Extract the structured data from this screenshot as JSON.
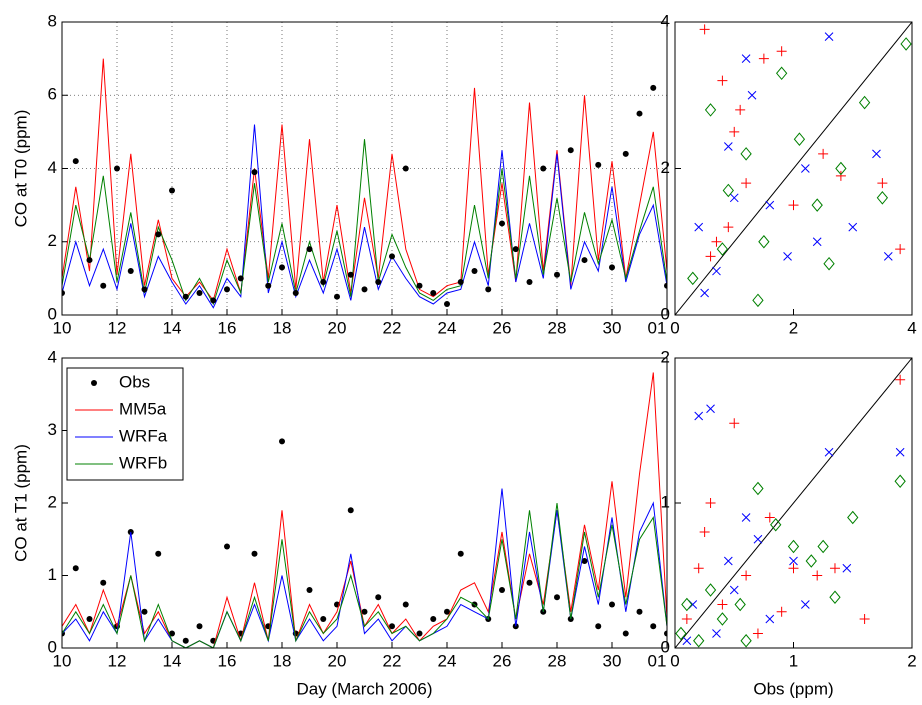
{
  "chart_data": [
    {
      "type": "line",
      "ylabel": "CO at T0 (ppm)",
      "grid": true,
      "x": [
        10,
        10.5,
        11,
        11.5,
        12,
        12.5,
        13,
        13.5,
        14,
        14.5,
        15,
        15.5,
        16,
        16.5,
        17,
        17.5,
        18,
        18.5,
        19,
        19.5,
        20,
        20.5,
        21,
        21.5,
        22,
        22.5,
        23,
        23.5,
        24,
        24.5,
        25,
        25.5,
        26,
        26.5,
        27,
        27.5,
        28,
        28.5,
        29,
        29.5,
        30,
        30.5,
        31,
        31.5,
        32
      ],
      "xlim": [
        10,
        32
      ],
      "xticks": [
        10,
        12,
        14,
        16,
        18,
        20,
        22,
        24,
        26,
        28,
        30,
        {
          "value": 32,
          "label": "01"
        }
      ],
      "ylim": [
        0,
        8
      ],
      "yticks": [
        0,
        2,
        4,
        6,
        8
      ],
      "series": [
        {
          "color": "#ff0000",
          "values": [
            1.0,
            3.5,
            1.2,
            7.0,
            1.1,
            4.4,
            0.8,
            2.6,
            1.0,
            0.5,
            0.9,
            0.4,
            1.8,
            0.6,
            4.0,
            1.0,
            5.2,
            0.7,
            4.8,
            0.9,
            3.0,
            0.6,
            3.2,
            1.0,
            4.4,
            1.8,
            0.7,
            0.5,
            0.8,
            0.9,
            6.2,
            1.1,
            3.6,
            0.9,
            5.8,
            1.2,
            4.5,
            0.8,
            6.0,
            1.5,
            4.2,
            1.0,
            3.0,
            5.0,
            1.2
          ]
        },
        {
          "color": "#0000ff",
          "values": [
            0.6,
            2.0,
            0.8,
            1.8,
            0.7,
            2.5,
            0.5,
            1.6,
            0.9,
            0.3,
            0.8,
            0.2,
            1.0,
            0.5,
            5.2,
            0.6,
            2.0,
            0.5,
            1.5,
            0.6,
            1.8,
            0.4,
            2.4,
            0.7,
            1.6,
            1.0,
            0.5,
            0.3,
            0.6,
            0.7,
            2.0,
            0.8,
            4.5,
            0.9,
            2.5,
            1.0,
            4.4,
            0.7,
            2.0,
            1.2,
            3.5,
            0.9,
            2.2,
            3.0,
            0.8
          ]
        },
        {
          "color": "#008000",
          "values": [
            0.8,
            3.0,
            1.5,
            3.8,
            0.9,
            2.8,
            0.6,
            2.4,
            1.5,
            0.4,
            1.0,
            0.3,
            1.5,
            0.6,
            3.6,
            0.9,
            2.5,
            0.6,
            2.0,
            0.8,
            2.3,
            0.5,
            4.8,
            0.9,
            2.2,
            1.3,
            0.6,
            0.4,
            0.7,
            0.8,
            3.0,
            1.0,
            4.0,
            1.0,
            3.8,
            1.1,
            3.2,
            0.9,
            2.8,
            1.4,
            2.6,
            1.0,
            2.3,
            3.5,
            0.9
          ]
        },
        {
          "color": "#000000",
          "marker": "dot",
          "values": [
            0.6,
            4.2,
            1.5,
            0.8,
            4.0,
            1.2,
            0.7,
            2.2,
            3.4,
            0.5,
            0.6,
            0.4,
            0.7,
            1.0,
            3.9,
            0.8,
            1.3,
            0.6,
            1.8,
            0.9,
            0.5,
            1.1,
            0.7,
            0.9,
            1.6,
            4.0,
            0.8,
            0.6,
            0.3,
            0.9,
            1.2,
            0.7,
            2.5,
            1.8,
            0.9,
            4.0,
            1.1,
            4.5,
            1.5,
            4.1,
            1.3,
            4.4,
            5.5,
            6.2,
            0.8
          ]
        }
      ]
    },
    {
      "type": "line",
      "ylabel": "CO at T1 (ppm)",
      "xlabel": "Day (March 2006)",
      "grid": false,
      "legend": "upper left",
      "x": [
        10,
        10.5,
        11,
        11.5,
        12,
        12.5,
        13,
        13.5,
        14,
        14.5,
        15,
        15.5,
        16,
        16.5,
        17,
        17.5,
        18,
        18.5,
        19,
        19.5,
        20,
        20.5,
        21,
        21.5,
        22,
        22.5,
        23,
        23.5,
        24,
        24.5,
        25,
        25.5,
        26,
        26.5,
        27,
        27.5,
        28,
        28.5,
        29,
        29.5,
        30,
        30.5,
        31,
        31.5,
        32
      ],
      "xlim": [
        10,
        32
      ],
      "xticks": [
        10,
        12,
        14,
        16,
        18,
        20,
        22,
        24,
        26,
        28,
        30,
        {
          "value": 32,
          "label": "01"
        }
      ],
      "ylim": [
        0,
        4
      ],
      "yticks": [
        0,
        1,
        2,
        3,
        4
      ],
      "series": [
        {
          "name": "Obs",
          "color": "#000000",
          "marker": "dot",
          "values": [
            0.2,
            1.1,
            0.4,
            0.9,
            0.3,
            1.6,
            0.5,
            1.3,
            0.2,
            0.1,
            0.3,
            0.1,
            1.4,
            0.2,
            1.3,
            0.3,
            2.85,
            0.2,
            0.8,
            0.4,
            0.6,
            1.9,
            0.5,
            0.7,
            0.3,
            0.6,
            0.2,
            0.4,
            0.5,
            1.3,
            0.6,
            0.4,
            0.8,
            0.3,
            0.9,
            0.5,
            0.7,
            0.4,
            1.2,
            0.3,
            0.6,
            0.2,
            0.5,
            0.3,
            0.2
          ]
        },
        {
          "name": "MM5a",
          "color": "#ff0000",
          "values": [
            0.3,
            0.6,
            0.2,
            0.8,
            0.3,
            1.0,
            0.2,
            0.5,
            0.1,
            0.0,
            0.1,
            0.0,
            0.7,
            0.1,
            0.9,
            0.1,
            1.9,
            0.1,
            0.6,
            0.2,
            0.5,
            1.2,
            0.3,
            0.6,
            0.2,
            0.4,
            0.1,
            0.3,
            0.4,
            0.8,
            0.9,
            0.5,
            1.6,
            0.4,
            1.3,
            0.6,
            1.9,
            0.5,
            1.7,
            0.8,
            2.3,
            0.7,
            2.4,
            3.8,
            0.4
          ]
        },
        {
          "name": "WRFa",
          "color": "#0000ff",
          "values": [
            0.2,
            0.4,
            0.1,
            0.5,
            0.2,
            1.6,
            0.1,
            0.4,
            0.1,
            0.0,
            0.1,
            0.0,
            0.5,
            0.1,
            0.6,
            0.1,
            1.0,
            0.1,
            0.4,
            0.1,
            0.3,
            1.3,
            0.2,
            0.4,
            0.1,
            0.3,
            0.1,
            0.2,
            0.3,
            0.6,
            0.5,
            0.4,
            2.2,
            0.3,
            1.6,
            0.5,
            1.9,
            0.4,
            1.4,
            0.6,
            1.8,
            0.5,
            1.6,
            2.0,
            0.3
          ]
        },
        {
          "name": "WRFb",
          "color": "#008000",
          "values": [
            0.2,
            0.5,
            0.2,
            0.6,
            0.2,
            1.0,
            0.1,
            0.6,
            0.1,
            0.0,
            0.1,
            0.0,
            0.5,
            0.1,
            0.7,
            0.1,
            1.5,
            0.1,
            0.5,
            0.2,
            0.4,
            1.0,
            0.3,
            0.5,
            0.2,
            0.3,
            0.1,
            0.2,
            0.4,
            0.7,
            0.6,
            0.4,
            1.5,
            0.4,
            1.9,
            0.5,
            2.0,
            0.4,
            1.6,
            0.7,
            1.7,
            0.6,
            1.5,
            1.8,
            0.3
          ]
        }
      ]
    },
    {
      "type": "scatter",
      "xlim": [
        0,
        4
      ],
      "xticks": [
        0,
        2,
        4
      ],
      "ylim": [
        0,
        4
      ],
      "yticks": [
        0,
        2,
        4
      ],
      "series": [
        {
          "color": "#ff0000",
          "marker": "+",
          "x": [
            0.5,
            0.8,
            1.0,
            1.2,
            0.6,
            1.5,
            2.0,
            0.9,
            1.8,
            2.5,
            3.5,
            0.7,
            1.1,
            3.8,
            2.8
          ],
          "values": [
            3.9,
            3.2,
            2.5,
            1.8,
            0.8,
            3.5,
            1.5,
            1.2,
            3.6,
            2.2,
            1.8,
            1.0,
            2.8,
            0.9,
            1.9
          ]
        },
        {
          "color": "#0000ff",
          "marker": "x",
          "x": [
            0.4,
            0.9,
            1.3,
            1.6,
            2.2,
            2.6,
            3.0,
            0.7,
            1.9,
            3.4,
            0.5,
            1.2,
            2.4,
            3.6,
            1.0
          ],
          "values": [
            1.2,
            2.3,
            3.0,
            1.5,
            2.0,
            3.8,
            1.2,
            0.6,
            0.8,
            2.2,
            0.3,
            3.5,
            1.0,
            0.8,
            1.6
          ]
        },
        {
          "color": "#008000",
          "marker": "diamond",
          "x": [
            0.3,
            0.6,
            0.9,
            1.2,
            1.5,
            1.8,
            2.1,
            2.4,
            2.8,
            3.2,
            3.5,
            3.9,
            0.8,
            1.4,
            2.6
          ],
          "values": [
            0.5,
            2.8,
            1.7,
            2.2,
            1.0,
            3.3,
            2.4,
            1.5,
            2.0,
            2.9,
            1.6,
            3.7,
            0.9,
            0.2,
            0.7
          ]
        }
      ]
    },
    {
      "type": "scatter",
      "xlabel": "Obs (ppm)",
      "xlim": [
        0,
        2
      ],
      "xticks": [
        0,
        1,
        2
      ],
      "ylim": [
        0,
        2
      ],
      "yticks": [
        0,
        1,
        2
      ],
      "series": [
        {
          "color": "#ff0000",
          "marker": "+",
          "x": [
            0.1,
            0.3,
            0.2,
            0.5,
            0.6,
            0.8,
            1.0,
            0.4,
            0.9,
            1.2,
            1.9,
            0.25,
            0.7,
            1.6,
            1.35
          ],
          "values": [
            0.2,
            1.0,
            0.55,
            1.55,
            0.5,
            0.9,
            0.55,
            0.3,
            0.25,
            0.5,
            1.85,
            0.8,
            0.1,
            0.2,
            0.55
          ]
        },
        {
          "color": "#0000ff",
          "marker": "x",
          "x": [
            0.15,
            0.3,
            0.45,
            0.6,
            0.2,
            0.5,
            0.8,
            1.0,
            1.3,
            1.45,
            1.9,
            0.35,
            0.7,
            0.1,
            1.1
          ],
          "values": [
            0.3,
            1.65,
            0.6,
            0.9,
            1.6,
            0.4,
            0.2,
            0.6,
            1.35,
            0.55,
            1.35,
            0.1,
            0.75,
            0.05,
            0.3
          ]
        },
        {
          "color": "#008000",
          "marker": "diamond",
          "x": [
            0.05,
            0.1,
            0.2,
            0.3,
            0.4,
            0.55,
            0.7,
            0.85,
            1.0,
            1.15,
            1.35,
            1.5,
            1.9,
            0.6,
            1.25
          ],
          "values": [
            0.1,
            0.3,
            0.05,
            0.4,
            0.2,
            0.3,
            1.1,
            0.85,
            0.7,
            0.6,
            0.35,
            0.9,
            1.15,
            0.05,
            0.7
          ]
        }
      ]
    }
  ]
}
